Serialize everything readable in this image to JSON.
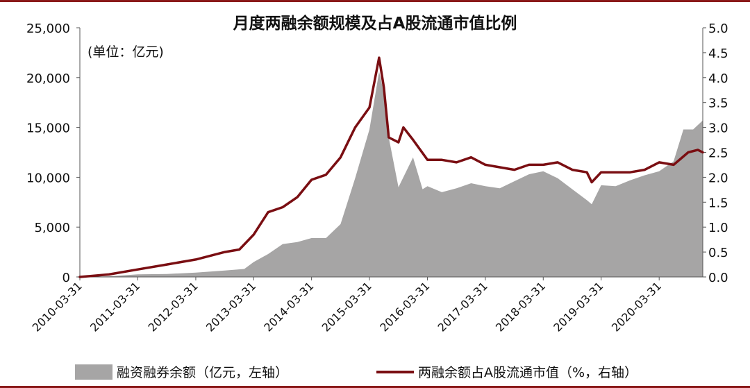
{
  "chart_data": {
    "type": "area+line",
    "title": "月度两融余额规模及占A股流通市值比例",
    "unit_note": "(单位：亿元)",
    "x_ticks": [
      "2010-03-31",
      "2011-03-31",
      "2012-03-31",
      "2013-03-31",
      "2014-03-31",
      "2015-03-31",
      "2016-03-31",
      "2017-03-31",
      "2018-03-31",
      "2019-03-31",
      "2020-03-31"
    ],
    "y_left": {
      "min": 0,
      "max": 25000,
      "ticks": [
        "0",
        "5,000",
        "10,000",
        "15,000",
        "20,000",
        "25,000"
      ]
    },
    "y_right": {
      "min": 0,
      "max": 5,
      "ticks": [
        "0.0",
        "0.5",
        "1.0",
        "1.5",
        "2.0",
        "2.5",
        "3.0",
        "3.5",
        "4.0",
        "4.5",
        "5.0"
      ]
    },
    "x_start": "2010-03-31",
    "x_end": "2020-12-31",
    "series": [
      {
        "name": "融资融券余额（亿元，左轴）",
        "kind": "area",
        "axis": "left",
        "color": "#a6a5a5",
        "points": [
          [
            "2010-03-31",
            0
          ],
          [
            "2010-09-30",
            60
          ],
          [
            "2011-03-31",
            260
          ],
          [
            "2011-09-30",
            300
          ],
          [
            "2012-03-31",
            430
          ],
          [
            "2012-09-30",
            650
          ],
          [
            "2013-01-31",
            800
          ],
          [
            "2013-03-31",
            1500
          ],
          [
            "2013-06-30",
            2300
          ],
          [
            "2013-09-30",
            3300
          ],
          [
            "2013-12-31",
            3500
          ],
          [
            "2014-03-31",
            3900
          ],
          [
            "2014-06-30",
            3900
          ],
          [
            "2014-09-30",
            5300
          ],
          [
            "2014-12-31",
            9900
          ],
          [
            "2015-03-31",
            14800
          ],
          [
            "2015-05-31",
            20600
          ],
          [
            "2015-06-30",
            18500
          ],
          [
            "2015-07-31",
            14000
          ],
          [
            "2015-09-30",
            9000
          ],
          [
            "2015-12-31",
            12000
          ],
          [
            "2016-02-29",
            8800
          ],
          [
            "2016-03-31",
            9100
          ],
          [
            "2016-06-30",
            8500
          ],
          [
            "2016-09-30",
            8900
          ],
          [
            "2016-12-31",
            9400
          ],
          [
            "2017-03-31",
            9100
          ],
          [
            "2017-06-30",
            8900
          ],
          [
            "2017-09-30",
            9600
          ],
          [
            "2017-12-31",
            10300
          ],
          [
            "2018-03-31",
            10600
          ],
          [
            "2018-06-30",
            9900
          ],
          [
            "2018-09-30",
            8800
          ],
          [
            "2018-12-31",
            7700
          ],
          [
            "2019-01-31",
            7300
          ],
          [
            "2019-03-31",
            9200
          ],
          [
            "2019-06-30",
            9100
          ],
          [
            "2019-09-30",
            9700
          ],
          [
            "2019-12-31",
            10200
          ],
          [
            "2020-03-31",
            10600
          ],
          [
            "2020-06-30",
            11600
          ],
          [
            "2020-08-31",
            14800
          ],
          [
            "2020-10-31",
            14800
          ],
          [
            "2020-12-31",
            15700
          ]
        ]
      },
      {
        "name": "两融余额占A股流通市值（%，右轴）",
        "kind": "line",
        "axis": "right",
        "color": "#7a0e12",
        "points": [
          [
            "2010-03-31",
            0.0
          ],
          [
            "2010-09-30",
            0.05
          ],
          [
            "2011-03-31",
            0.15
          ],
          [
            "2011-09-30",
            0.25
          ],
          [
            "2012-03-31",
            0.35
          ],
          [
            "2012-09-30",
            0.5
          ],
          [
            "2012-12-31",
            0.55
          ],
          [
            "2013-03-31",
            0.85
          ],
          [
            "2013-06-30",
            1.3
          ],
          [
            "2013-09-30",
            1.4
          ],
          [
            "2013-12-31",
            1.6
          ],
          [
            "2014-03-31",
            1.95
          ],
          [
            "2014-06-30",
            2.05
          ],
          [
            "2014-09-30",
            2.4
          ],
          [
            "2014-12-31",
            3.0
          ],
          [
            "2015-03-31",
            3.4
          ],
          [
            "2015-05-31",
            4.4
          ],
          [
            "2015-06-30",
            3.8
          ],
          [
            "2015-07-31",
            2.8
          ],
          [
            "2015-09-30",
            2.7
          ],
          [
            "2015-10-31",
            3.0
          ],
          [
            "2015-12-31",
            2.75
          ],
          [
            "2016-03-31",
            2.35
          ],
          [
            "2016-06-30",
            2.35
          ],
          [
            "2016-09-30",
            2.3
          ],
          [
            "2016-12-31",
            2.4
          ],
          [
            "2017-03-31",
            2.25
          ],
          [
            "2017-06-30",
            2.2
          ],
          [
            "2017-09-30",
            2.15
          ],
          [
            "2017-12-31",
            2.25
          ],
          [
            "2018-03-31",
            2.25
          ],
          [
            "2018-06-30",
            2.3
          ],
          [
            "2018-09-30",
            2.15
          ],
          [
            "2018-12-31",
            2.1
          ],
          [
            "2019-01-31",
            1.9
          ],
          [
            "2019-03-31",
            2.1
          ],
          [
            "2019-06-30",
            2.1
          ],
          [
            "2019-09-30",
            2.1
          ],
          [
            "2019-12-31",
            2.15
          ],
          [
            "2020-03-31",
            2.3
          ],
          [
            "2020-06-30",
            2.25
          ],
          [
            "2020-09-30",
            2.5
          ],
          [
            "2020-11-30",
            2.55
          ],
          [
            "2020-12-31",
            2.5
          ]
        ]
      }
    ]
  }
}
